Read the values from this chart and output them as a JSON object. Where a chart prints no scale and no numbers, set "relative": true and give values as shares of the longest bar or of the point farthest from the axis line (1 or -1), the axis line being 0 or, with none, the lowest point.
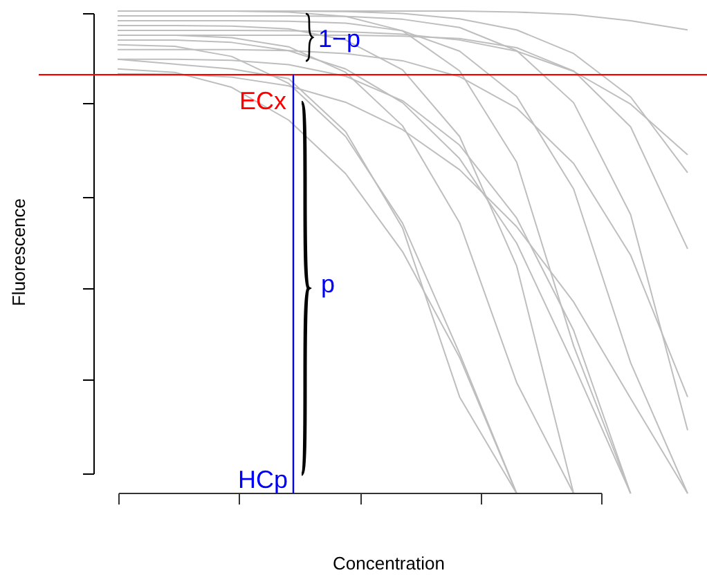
{
  "chart_data": {
    "type": "line",
    "relative": true,
    "xlabel": "Concentration",
    "ylabel": "Fluorescence",
    "categories": [
      null,
      null,
      null,
      null,
      null,
      null,
      null,
      null,
      null,
      null,
      null
    ],
    "marker": "none",
    "line_style": "solid",
    "legend": false,
    "series": [
      {
        "color": "#bebebe",
        "values": [
          0.93,
          0.927,
          0.906,
          0.85,
          0.74,
          0.56,
          0.29,
          0,
          null,
          null,
          null
        ]
      },
      {
        "color": "#bebebe",
        "values": [
          0.95,
          0.95,
          0.945,
          0.926,
          0.873,
          0.762,
          0.561,
          0.23,
          0,
          null,
          null
        ]
      },
      {
        "color": "#bebebe",
        "values": [
          0.97,
          0.97,
          0.969,
          0.963,
          0.94,
          0.878,
          0.74,
          0.472,
          0,
          null,
          null
        ]
      },
      {
        "color": "#bebebe",
        "values": [
          1,
          1,
          1,
          0.998,
          0.989,
          0.959,
          0.876,
          0.687,
          0.306,
          0,
          null
        ]
      },
      {
        "color": "#bebebe",
        "values": [
          0.9,
          0.9,
          0.898,
          0.889,
          0.865,
          0.814,
          0.722,
          0.571,
          0.338,
          0,
          null
        ]
      },
      {
        "color": "#bebebe",
        "values": [
          0.98,
          0.98,
          0.98,
          0.979,
          0.975,
          0.959,
          0.917,
          0.823,
          0.631,
          0.271,
          0
        ]
      },
      {
        "color": "#bebebe",
        "values": [
          0.92,
          0.92,
          0.92,
          0.918,
          0.912,
          0.897,
          0.864,
          0.799,
          0.684,
          0.494,
          0.2
        ]
      },
      {
        "color": "#bebebe",
        "values": [
          1,
          1,
          1,
          1,
          0.999,
          0.995,
          0.984,
          0.961,
          0.912,
          0.822,
          0.665
        ]
      },
      {
        "color": "#bebebe",
        "values": [
          0.88,
          0.873,
          0.842,
          0.774,
          0.663,
          0.501,
          0.282,
          0,
          null,
          null,
          null
        ]
      },
      {
        "color": "#bebebe",
        "values": [
          0.9,
          0.89,
          0.88,
          0.86,
          0.75,
          0.55,
          0.2,
          0,
          null,
          null,
          null
        ]
      },
      {
        "color": "#bebebe",
        "values": [
          1,
          1,
          1,
          1,
          1,
          1,
          1,
          0.998,
          0.993,
          0.98,
          0.961
        ]
      },
      {
        "color": "#bebebe",
        "values": [
          0.95,
          0.95,
          0.95,
          0.95,
          0.95,
          0.948,
          0.943,
          0.924,
          0.876,
          0.76,
          0.507
        ]
      },
      {
        "color": "#bebebe",
        "values": [
          0.87,
          0.869,
          0.863,
          0.845,
          0.811,
          0.754,
          0.671,
          0.553,
          0.397,
          0.197,
          0
        ]
      },
      {
        "color": "#bebebe",
        "values": [
          0.99,
          0.99,
          0.99,
          0.99,
          0.989,
          0.983,
          0.966,
          0.918,
          0.81,
          0.578,
          0.131
        ]
      },
      {
        "color": "#bebebe",
        "values": [
          0.94,
          0.94,
          0.935,
          0.918,
          0.88,
          0.81,
          0.694,
          0.519,
          0.267,
          0,
          null
        ]
      },
      {
        "color": "#bebebe",
        "values": [
          0.96,
          0.96,
          0.96,
          0.959,
          0.957,
          0.952,
          0.94,
          0.917,
          0.875,
          0.807,
          0.702
        ]
      }
    ],
    "ref_lines": [
      {
        "axis": "y",
        "value": 0.868,
        "label": "ECx",
        "color": "#ff0000"
      }
    ],
    "annotations": [
      "1−p",
      "p",
      "HCp"
    ]
  }
}
